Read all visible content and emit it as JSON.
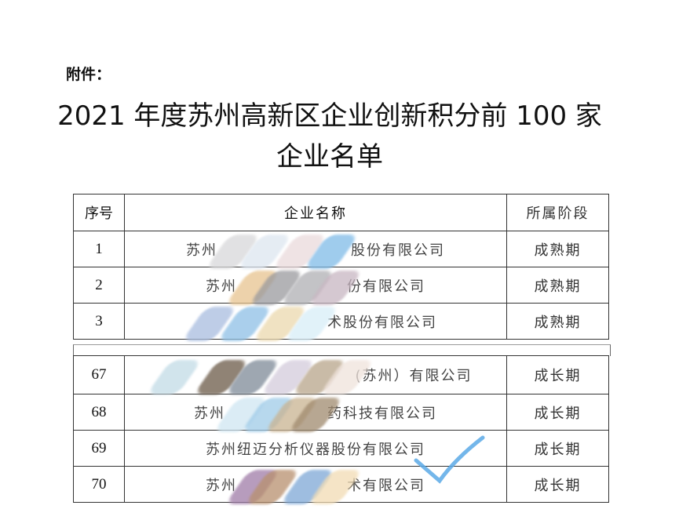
{
  "attachment_label": "附件：",
  "title_line1": "2021 年度苏州高新区企业创新积分前 100 家",
  "title_line2": "企业名单",
  "table": {
    "headers": [
      "序号",
      "企业名称",
      "所属阶段"
    ],
    "rows_top": [
      {
        "no": "1",
        "name_prefix": "苏州",
        "name_suffix": "股份有限公司",
        "stage": "成熟期"
      },
      {
        "no": "2",
        "name_prefix": "苏州",
        "name_suffix": "份有限公司",
        "stage": "成熟期"
      },
      {
        "no": "3",
        "name_prefix": "",
        "name_suffix": "术股份有限公司",
        "stage": "成熟期"
      }
    ],
    "rows_bottom": [
      {
        "no": "67",
        "name_prefix": "",
        "name_suffix": "(苏州）有限公司",
        "stage": "成长期"
      },
      {
        "no": "68",
        "name_prefix": "苏州",
        "name_suffix": "药科技有限公司",
        "stage": "成长期"
      },
      {
        "no": "69",
        "name_prefix": "苏州纽迈分析仪器股份有限公司",
        "name_suffix": "",
        "stage": "成长期"
      },
      {
        "no": "70",
        "name_prefix": "苏州",
        "name_suffix": "术有限公司",
        "stage": "成长期"
      }
    ]
  },
  "colors": {
    "checkmark": "#5aa9e6",
    "border": "#333333"
  },
  "icons": {
    "annotation": "checkmark-icon"
  }
}
